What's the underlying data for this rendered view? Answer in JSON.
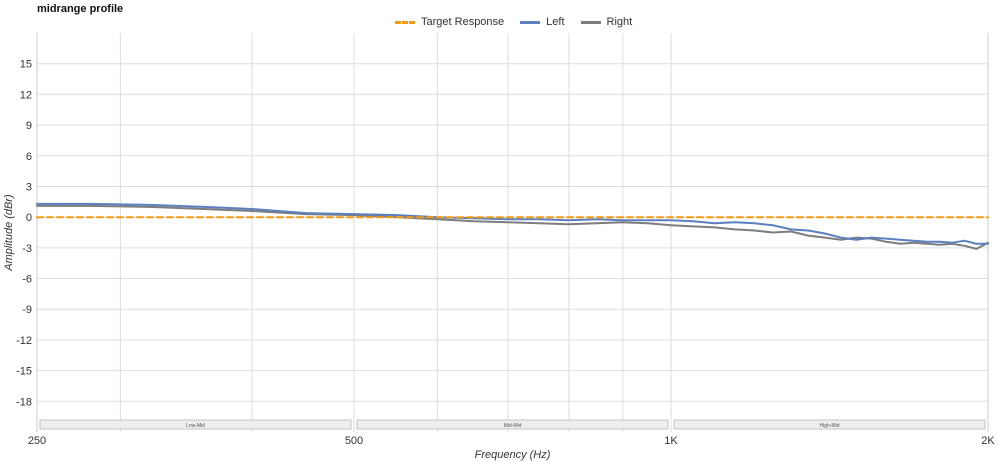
{
  "title": "midrange profile",
  "colors": {
    "target": "#f29b12",
    "left": "#5b7fc0",
    "right": "#7d7d7d",
    "grid": "#dddddd",
    "band_fill": "#eeeeee",
    "band_stroke": "#b8b8b8"
  },
  "chart_data": {
    "type": "line",
    "title": "midrange profile",
    "xlabel": "Frequency (Hz)",
    "ylabel": "Amplitude (dBr)",
    "x_scale": "log",
    "xlim": [
      250,
      2000
    ],
    "ylim": [
      -21,
      18
    ],
    "x_ticks": [
      {
        "value": 250,
        "label": "250"
      },
      {
        "value": 500,
        "label": "500"
      },
      {
        "value": 1000,
        "label": "1K"
      },
      {
        "value": 2000,
        "label": "2K"
      }
    ],
    "x_minor_gridlines": [
      300,
      400,
      600,
      700,
      800,
      900
    ],
    "y_ticks": [
      15,
      12,
      9,
      6,
      3,
      0,
      -3,
      -6,
      -9,
      -12,
      -15,
      -18
    ],
    "grid": true,
    "legend_position": "top-center",
    "bands": [
      {
        "label": "Low-Mid",
        "from": 250,
        "to": 500
      },
      {
        "label": "Mid-Mid",
        "from": 500,
        "to": 1000
      },
      {
        "label": "High-Mid",
        "from": 1000,
        "to": 2000
      }
    ],
    "series": [
      {
        "name": "Target Response",
        "style": "dashed",
        "color": "#f29b12",
        "x": [
          250,
          2000
        ],
        "y": [
          0,
          0
        ]
      },
      {
        "name": "Left",
        "style": "solid",
        "color": "#5b7fc0",
        "x": [
          250,
          280,
          320,
          360,
          400,
          450,
          500,
          550,
          600,
          650,
          700,
          750,
          800,
          850,
          900,
          950,
          1000,
          1050,
          1100,
          1150,
          1200,
          1250,
          1300,
          1350,
          1400,
          1450,
          1500,
          1550,
          1600,
          1650,
          1700,
          1750,
          1800,
          1850,
          1900,
          1950,
          2000
        ],
        "y": [
          1.3,
          1.3,
          1.2,
          1.0,
          0.8,
          0.4,
          0.3,
          0.2,
          0.0,
          -0.1,
          -0.2,
          -0.2,
          -0.3,
          -0.2,
          -0.3,
          -0.3,
          -0.3,
          -0.4,
          -0.6,
          -0.5,
          -0.6,
          -0.8,
          -1.2,
          -1.3,
          -1.6,
          -2.0,
          -2.2,
          -2.0,
          -2.1,
          -2.2,
          -2.3,
          -2.4,
          -2.4,
          -2.5,
          -2.3,
          -2.6,
          -2.6
        ]
      },
      {
        "name": "Right",
        "style": "solid",
        "color": "#7d7d7d",
        "x": [
          250,
          280,
          320,
          360,
          400,
          450,
          500,
          550,
          600,
          650,
          700,
          750,
          800,
          850,
          900,
          950,
          1000,
          1050,
          1100,
          1150,
          1200,
          1250,
          1300,
          1350,
          1400,
          1450,
          1500,
          1550,
          1600,
          1650,
          1700,
          1750,
          1800,
          1850,
          1900,
          1950,
          2000
        ],
        "y": [
          1.1,
          1.1,
          1.0,
          0.8,
          0.6,
          0.3,
          0.2,
          0.0,
          -0.2,
          -0.4,
          -0.5,
          -0.6,
          -0.7,
          -0.6,
          -0.5,
          -0.6,
          -0.8,
          -0.9,
          -1.0,
          -1.2,
          -1.3,
          -1.5,
          -1.4,
          -1.8,
          -2.0,
          -2.2,
          -2.0,
          -2.1,
          -2.4,
          -2.6,
          -2.5,
          -2.6,
          -2.7,
          -2.6,
          -2.8,
          -3.1,
          -2.5
        ]
      }
    ]
  }
}
